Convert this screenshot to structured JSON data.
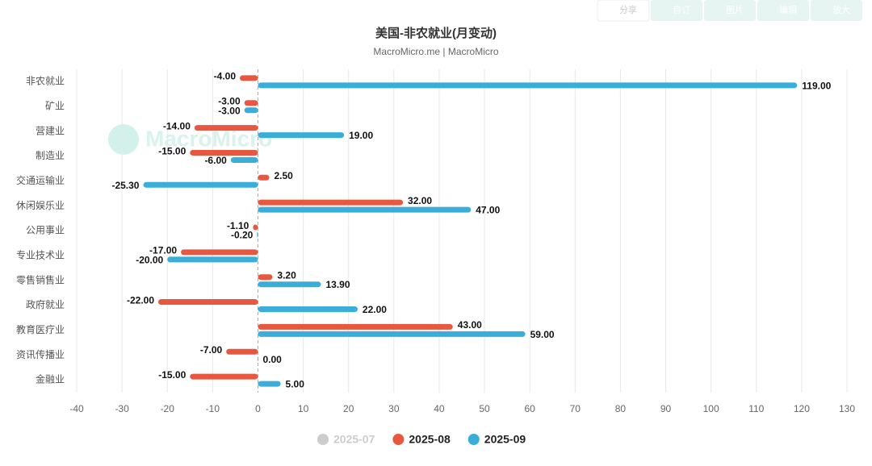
{
  "toolbar": [
    "分享",
    "自订",
    "图片",
    "编辑",
    "放大"
  ],
  "chart_data": {
    "type": "hbar",
    "title": "美国-非农就业(月变动)",
    "subtitle": "MacroMicro.me | MacroMicro",
    "watermark": "MacroMicro",
    "categories": [
      "非农就业",
      "矿业",
      "营建业",
      "制造业",
      "交通运输业",
      "休闲娱乐业",
      "公用事业",
      "专业技术业",
      "零售销售业",
      "政府就业",
      "教育医疗业",
      "资讯传播业",
      "金融业"
    ],
    "series": [
      {
        "name": "2025-07",
        "color": "#cccccc",
        "visible": false,
        "values": [
          null,
          null,
          null,
          null,
          null,
          null,
          null,
          null,
          null,
          null,
          null,
          null,
          null
        ]
      },
      {
        "name": "2025-08",
        "color": "#e8573f",
        "visible": true,
        "values": [
          -4,
          -3,
          -14,
          -15,
          2.5,
          32,
          -1.1,
          -17,
          3.2,
          -22,
          43,
          -7,
          -15
        ],
        "value_labels": [
          "-4.00",
          "-3.00",
          "-14.00",
          "-15.00",
          "2.50",
          "32.00",
          "-1.10",
          "-17.00",
          "3.20",
          "-22.00",
          "43.00",
          "-7.00",
          "-15.00"
        ]
      },
      {
        "name": "2025-09",
        "color": "#3aaed8",
        "visible": true,
        "values": [
          119,
          -3,
          19,
          -6,
          -25.3,
          47,
          -0.2,
          -20,
          13.9,
          22,
          59,
          0,
          5
        ],
        "value_labels": [
          "119.00",
          "-3.00",
          "19.00",
          "-6.00",
          "-25.30",
          "47.00",
          "-0.20",
          "-20.00",
          "13.90",
          "22.00",
          "59.00",
          "0.00",
          "5.00"
        ]
      }
    ],
    "xlim": [
      -40,
      130
    ],
    "xticks": [
      -40,
      -30,
      -20,
      -10,
      0,
      10,
      20,
      30,
      40,
      50,
      60,
      70,
      80,
      90,
      100,
      110,
      120,
      130
    ],
    "grid": true,
    "legend": "bottom"
  }
}
